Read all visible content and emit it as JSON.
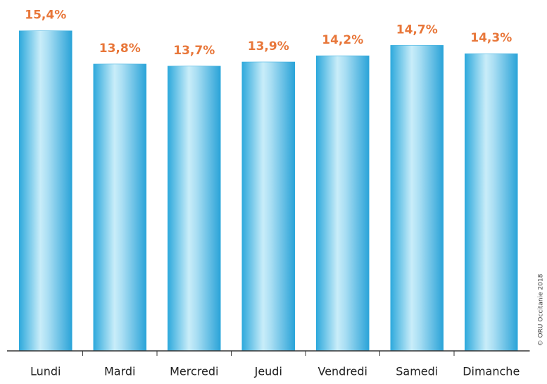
{
  "chart_data": {
    "type": "bar",
    "categories": [
      "Lundi",
      "Mardi",
      "Mercredi",
      "Jeudi",
      "Vendredi",
      "Samedi",
      "Dimanche"
    ],
    "values": [
      15.4,
      13.8,
      13.7,
      13.9,
      14.2,
      14.7,
      14.3
    ],
    "value_labels": [
      "15,4%",
      "13,8%",
      "13,7%",
      "13,9%",
      "14,2%",
      "14,7%",
      "14,3%"
    ],
    "color": "#2aa8dc",
    "label_color": "#e8773a",
    "credit": "© ORU Occitanie 2018"
  }
}
